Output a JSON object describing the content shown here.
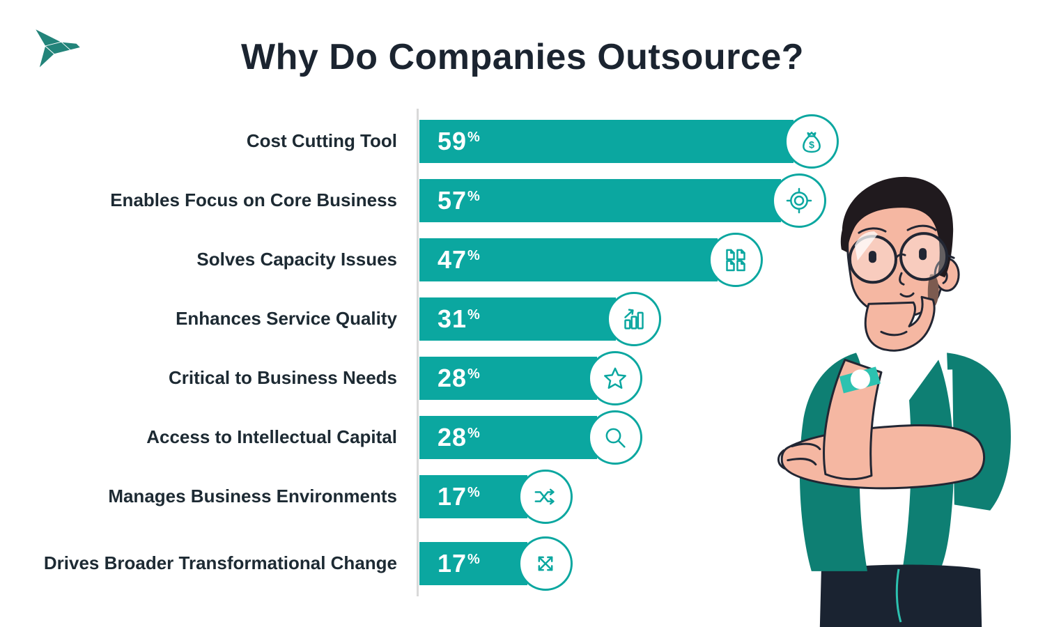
{
  "header": {
    "title": "Why Do Companies Outsource?"
  },
  "logo": {
    "name": "origami-bird"
  },
  "chart_data": {
    "type": "bar",
    "orientation": "horizontal",
    "title": "Why Do Companies Outsource?",
    "unit": "%",
    "categories": [
      "Cost Cutting Tool",
      "Enables Focus on Core Business",
      "Solves Capacity Issues",
      "Enhances Service Quality",
      "Critical to Business Needs",
      "Access to Intellectual Capital",
      "Manages Business Environments",
      "Drives Broader Transformational Change"
    ],
    "values": [
      59,
      57,
      47,
      31,
      28,
      28,
      17,
      17
    ],
    "icons": [
      "money-bag",
      "target",
      "documents",
      "growth-chart",
      "star",
      "magnifier",
      "shuffle",
      "expand-arrows"
    ],
    "xlim": [
      0,
      62
    ],
    "grid": false,
    "legend": "none",
    "value_labels": "inside-start"
  },
  "theme": {
    "accent": "#0BA7A0",
    "title_color": "#1B2430",
    "label_color": "#1D2A33",
    "axis_color": "#D9D9D9",
    "logo_color": "#23847A",
    "cardigan": "#0E7F73",
    "skin": "#F5B7A2",
    "skin_shadow": "#7C5B50",
    "hair": "#201A1E",
    "pants": "#1A2331",
    "outline": "#222633",
    "watch": "#2CC2B0"
  },
  "illustration": {
    "name": "thinking-man"
  }
}
